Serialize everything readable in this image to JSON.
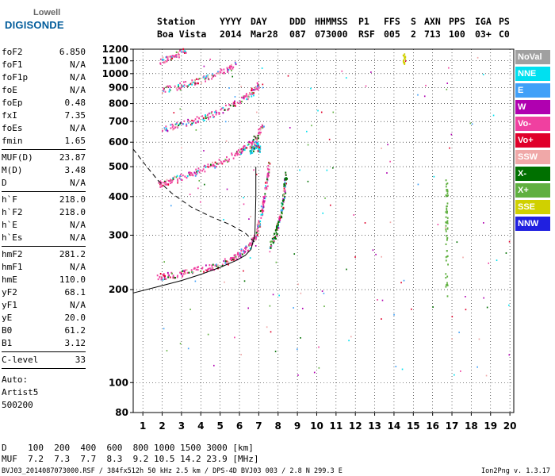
{
  "logo": {
    "top": "Lowell",
    "bottom": "DIGISONDE"
  },
  "header": {
    "row1": [
      {
        "key": "station",
        "text": "Station"
      },
      {
        "key": "yyyy",
        "text": "YYYY"
      },
      {
        "key": "day",
        "text": "DAY"
      },
      {
        "key": "ddd",
        "text": "DDD"
      },
      {
        "key": "hhmmss",
        "text": "HHMMSS"
      },
      {
        "key": "p1",
        "text": "P1"
      },
      {
        "key": "ffs",
        "text": "FFS"
      },
      {
        "key": "s",
        "text": "S"
      },
      {
        "key": "axn",
        "text": "AXN"
      },
      {
        "key": "pps",
        "text": "PPS"
      },
      {
        "key": "iga",
        "text": "IGA"
      },
      {
        "key": "ps",
        "text": "PS"
      }
    ],
    "row2": [
      {
        "key": "station",
        "text": "Boa Vista"
      },
      {
        "key": "yyyy",
        "text": "2014"
      },
      {
        "key": "day",
        "text": "Mar28"
      },
      {
        "key": "ddd",
        "text": "087"
      },
      {
        "key": "hhmmss",
        "text": "073000"
      },
      {
        "key": "p1",
        "text": "RSF"
      },
      {
        "key": "ffs",
        "text": "005"
      },
      {
        "key": "s",
        "text": "2"
      },
      {
        "key": "axn",
        "text": "713"
      },
      {
        "key": "pps",
        "text": "100"
      },
      {
        "key": "iga",
        "text": "03+"
      },
      {
        "key": "ps",
        "text": "C0"
      }
    ]
  },
  "params": {
    "group1": [
      {
        "name": "foF2",
        "value": "6.850"
      },
      {
        "name": "foF1",
        "value": "N/A"
      },
      {
        "name": "foF1p",
        "value": "N/A"
      },
      {
        "name": "foE",
        "value": "N/A"
      },
      {
        "name": "foEp",
        "value": "0.48"
      },
      {
        "name": "fxI",
        "value": "7.35"
      },
      {
        "name": "foEs",
        "value": "N/A"
      },
      {
        "name": "fmin",
        "value": "1.65"
      }
    ],
    "group2": [
      {
        "name": "MUF(D)",
        "value": "23.87"
      },
      {
        "name": "M(D)",
        "value": "3.48"
      },
      {
        "name": "D",
        "value": "N/A"
      }
    ],
    "group3": [
      {
        "name": "h`F",
        "value": "218.0"
      },
      {
        "name": "h`F2",
        "value": "218.0"
      },
      {
        "name": "h`E",
        "value": "N/A"
      },
      {
        "name": "h`Es",
        "value": "N/A"
      }
    ],
    "group4": [
      {
        "name": "hmF2",
        "value": "281.2"
      },
      {
        "name": "hmF1",
        "value": "N/A"
      },
      {
        "name": "hmE",
        "value": "110.0"
      },
      {
        "name": "yF2",
        "value": "68.1"
      },
      {
        "name": "yF1",
        "value": "N/A"
      },
      {
        "name": "yE",
        "value": "20.0"
      },
      {
        "name": "B0",
        "value": "61.2"
      },
      {
        "name": "B1",
        "value": "3.12"
      }
    ],
    "group5": [
      {
        "name": "C-level",
        "value": "33"
      }
    ],
    "auto": [
      "Auto:",
      "Artist5",
      "500200"
    ]
  },
  "legend": [
    {
      "label": "NoVal",
      "color": "#a0a0a0"
    },
    {
      "label": "NNE",
      "color": "#00e0f0"
    },
    {
      "label": "E",
      "color": "#40a0f8"
    },
    {
      "label": "W",
      "color": "#b000b0"
    },
    {
      "label": "Vo-",
      "color": "#f040a0"
    },
    {
      "label": "Vo+",
      "color": "#e0002a"
    },
    {
      "label": "SSW",
      "color": "#f0a8a8"
    },
    {
      "label": "X-",
      "color": "#007000"
    },
    {
      "label": "X+",
      "color": "#60b040"
    },
    {
      "label": "SSE",
      "color": "#d0d000"
    },
    {
      "label": "NNW",
      "color": "#2020e0"
    }
  ],
  "bottom_table": {
    "row1": "D    100  200  400  600  800 1000 1500 3000 [km]",
    "row2": "MUF  7.2  7.3  7.7  8.3  9.2 10.5 14.2 23.9 [MHz]"
  },
  "footer": {
    "left": "BVJ03_2014087073000.RSF / 384fx512h 50 kHz 2.5 km / DPS-4D BVJ03 003 / 2.8 N 299.3 E",
    "right": "Ion2Png v. 1.3.17"
  },
  "chart_data": {
    "type": "scatter",
    "x_ticks": [
      1,
      2,
      3,
      4,
      5,
      6,
      7,
      8,
      9,
      10,
      11,
      12,
      13,
      14,
      15,
      16,
      17,
      18,
      19,
      20
    ],
    "y_ticks": [
      80,
      100,
      200,
      300,
      400,
      500,
      600,
      700,
      800,
      900,
      1000,
      1100,
      1200
    ],
    "xlim": [
      0.5,
      20.2
    ],
    "ylim": [
      80,
      1200
    ],
    "y_scale": "log",
    "traces": [
      {
        "name": "O-trace 1st hop",
        "color_key": "Vo-",
        "points": [
          [
            1.7,
            220
          ],
          [
            2.5,
            224
          ],
          [
            3.5,
            230
          ],
          [
            4.5,
            238
          ],
          [
            5.5,
            250
          ],
          [
            6.0,
            262
          ],
          [
            6.5,
            278
          ],
          [
            6.8,
            300
          ],
          [
            7.0,
            330
          ],
          [
            7.2,
            380
          ],
          [
            7.4,
            450
          ],
          [
            7.5,
            520
          ]
        ]
      },
      {
        "name": "O-trace 2nd hop",
        "color_key": "Vo-",
        "points": [
          [
            1.8,
            440
          ],
          [
            2.5,
            455
          ],
          [
            3.5,
            475
          ],
          [
            4.5,
            505
          ],
          [
            5.5,
            540
          ],
          [
            6.2,
            570
          ],
          [
            6.8,
            620
          ],
          [
            7.2,
            680
          ]
        ]
      },
      {
        "name": "O-trace 3rd hop",
        "color_key": "Vo-",
        "points": [
          [
            2.0,
            660
          ],
          [
            3.0,
            690
          ],
          [
            4.0,
            720
          ],
          [
            5.0,
            760
          ],
          [
            6.0,
            820
          ],
          [
            6.6,
            870
          ],
          [
            7.0,
            930
          ]
        ]
      },
      {
        "name": "O-trace 4th hop",
        "color_key": "Vo-",
        "points": [
          [
            2.0,
            890
          ],
          [
            3.0,
            920
          ],
          [
            4.0,
            960
          ],
          [
            5.0,
            1010
          ],
          [
            5.8,
            1080
          ]
        ]
      },
      {
        "name": "O-trace 5th hop",
        "color_key": "Vo-",
        "points": [
          [
            1.8,
            1105
          ],
          [
            2.5,
            1140
          ],
          [
            3.2,
            1195
          ]
        ]
      },
      {
        "name": "X-trace 1st hop",
        "color_key": "X-",
        "points": [
          [
            7.6,
            280
          ],
          [
            7.8,
            300
          ],
          [
            8.0,
            330
          ],
          [
            8.2,
            370
          ],
          [
            8.3,
            420
          ],
          [
            8.4,
            480
          ]
        ]
      },
      {
        "name": "NNE 2nd hop",
        "color_key": "NNE",
        "points": [
          [
            6.5,
            560
          ],
          [
            6.7,
            580
          ],
          [
            6.9,
            600
          ],
          [
            7.0,
            570
          ]
        ]
      },
      {
        "name": "noise at 16.7 MHz",
        "color_key": "X+",
        "points": [
          [
            16.7,
            190
          ],
          [
            16.7,
            260
          ],
          [
            16.7,
            330
          ],
          [
            16.7,
            400
          ],
          [
            16.7,
            470
          ]
        ]
      },
      {
        "name": "noise at 14.5 MHz",
        "color_key": "SSE",
        "points": [
          [
            14.5,
            1100
          ],
          [
            14.5,
            1140
          ]
        ]
      }
    ],
    "profile_solid": [
      [
        0.5,
        195
      ],
      [
        2,
        206
      ],
      [
        3,
        214
      ],
      [
        4,
        224
      ],
      [
        5,
        236
      ],
      [
        5.8,
        248
      ],
      [
        6.3,
        258
      ],
      [
        6.6,
        270
      ],
      [
        6.8,
        300
      ],
      [
        6.85,
        400
      ],
      [
        6.85,
        500
      ]
    ],
    "profile_dashed": [
      [
        0.5,
        570
      ],
      [
        1.2,
        500
      ],
      [
        1.8,
        450
      ],
      [
        2.5,
        410
      ],
      [
        3.5,
        370
      ],
      [
        4.5,
        345
      ],
      [
        5.5,
        325
      ],
      [
        6.3,
        305
      ],
      [
        6.85,
        282
      ]
    ]
  }
}
